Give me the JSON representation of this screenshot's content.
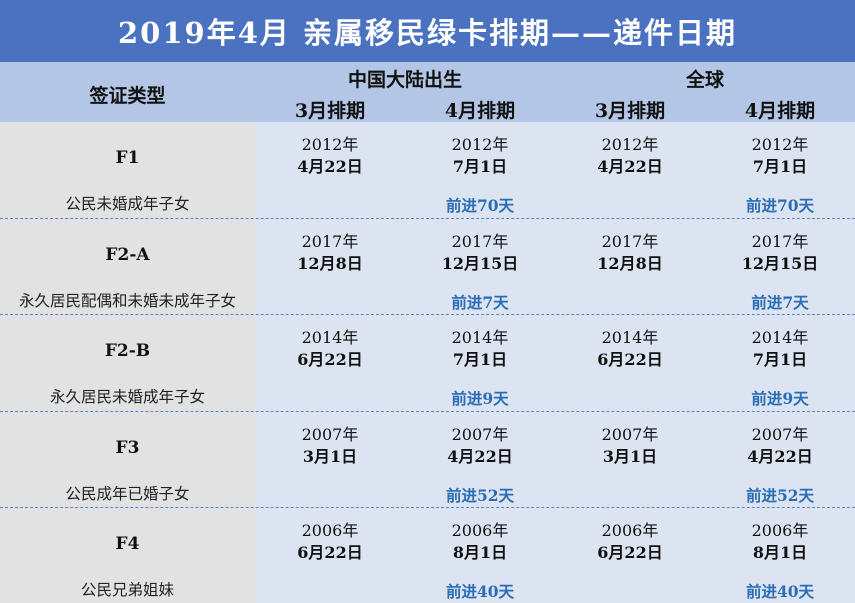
{
  "title": "2019年4月  亲属移民绿卡排期——递件日期",
  "header": {
    "visa_type": "签证类型",
    "group_china": "中国大陆出生",
    "group_global": "全球",
    "col_march": "3月排期",
    "col_april": "4月排期"
  },
  "rows": [
    {
      "code": "F1",
      "desc": "公民未婚成年子女",
      "china_march": {
        "year": "2012年",
        "date": "4月22日"
      },
      "china_april": {
        "year": "2012年",
        "date": "7月1日"
      },
      "global_march": {
        "year": "2012年",
        "date": "4月22日"
      },
      "global_april": {
        "year": "2012年",
        "date": "7月1日"
      },
      "china_advance": "前进70天",
      "global_advance": "前进70天"
    },
    {
      "code": "F2-A",
      "desc": "永久居民配偶和未婚未成年子女",
      "china_march": {
        "year": "2017年",
        "date": "12月8日"
      },
      "china_april": {
        "year": "2017年",
        "date": "12月15日"
      },
      "global_march": {
        "year": "2017年",
        "date": "12月8日"
      },
      "global_april": {
        "year": "2017年",
        "date": "12月15日"
      },
      "china_advance": "前进7天",
      "global_advance": "前进7天"
    },
    {
      "code": "F2-B",
      "desc": "永久居民未婚成年子女",
      "china_march": {
        "year": "2014年",
        "date": "6月22日"
      },
      "china_april": {
        "year": "2014年",
        "date": "7月1日"
      },
      "global_march": {
        "year": "2014年",
        "date": "6月22日"
      },
      "global_april": {
        "year": "2014年",
        "date": "7月1日"
      },
      "china_advance": "前进9天",
      "global_advance": "前进9天"
    },
    {
      "code": "F3",
      "desc": "公民成年已婚子女",
      "china_march": {
        "year": "2007年",
        "date": "3月1日"
      },
      "china_april": {
        "year": "2007年",
        "date": "4月22日"
      },
      "global_march": {
        "year": "2007年",
        "date": "3月1日"
      },
      "global_april": {
        "year": "2007年",
        "date": "4月22日"
      },
      "china_advance": "前进52天",
      "global_advance": "前进52天"
    },
    {
      "code": "F4",
      "desc": "公民兄弟姐妹",
      "china_march": {
        "year": "2006年",
        "date": "6月22日"
      },
      "china_april": {
        "year": "2006年",
        "date": "8月1日"
      },
      "global_march": {
        "year": "2006年",
        "date": "6月22日"
      },
      "global_april": {
        "year": "2006年",
        "date": "8月1日"
      },
      "china_advance": "前进40天",
      "global_advance": "前进40天"
    }
  ],
  "colors": {
    "title_bg": "#4a72c0",
    "header_bg": "#b3c6e6",
    "body_bg": "#dce4f2",
    "left_bg": "#e2e2e2",
    "advance_text": "#2a6db4",
    "divider": "#5a85c4"
  }
}
